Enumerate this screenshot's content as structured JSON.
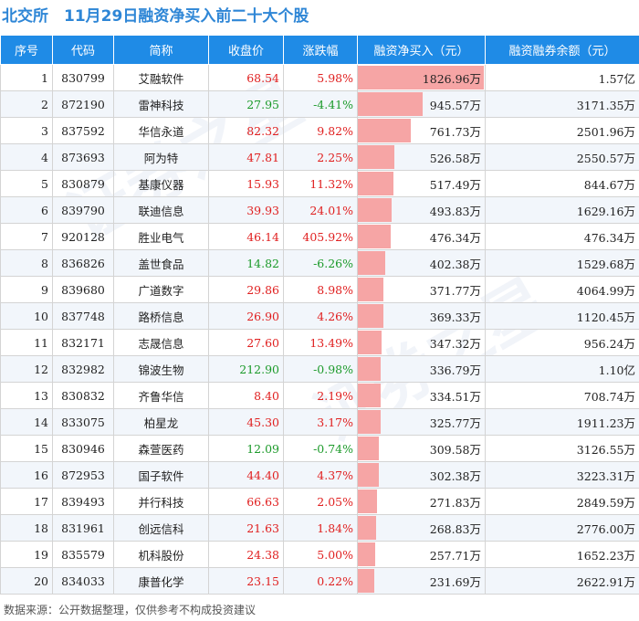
{
  "header": {
    "brand": "北交所",
    "title": "11月29日融资净买入前二十大个股"
  },
  "columns": {
    "rank": "序号",
    "code": "代码",
    "name": "简称",
    "close": "收盘价",
    "change": "涨跌幅",
    "net_buy": "融资净买入（元）",
    "balance": "融资融券余额（元）"
  },
  "colors": {
    "up": "#e02020",
    "down": "#1c9a2a",
    "bar": "#f6a5a5",
    "header_bg": "#1f8be6",
    "brand": "#2e86d6"
  },
  "chart_data": {
    "type": "table",
    "columns": [
      "序号",
      "代码",
      "简称",
      "收盘价",
      "涨跌幅",
      "融资净买入（元）",
      "融资融券余额（元）"
    ],
    "net_buy_unit": "万",
    "rows": [
      {
        "rank": "1",
        "code": "830799",
        "name": "艾融软件",
        "close": "68.54",
        "change": "5.98%",
        "dir": "up",
        "net_buy": 1826.96,
        "net_buy_text": "1826.96万",
        "balance": "1.57亿"
      },
      {
        "rank": "2",
        "code": "872190",
        "name": "雷神科技",
        "close": "27.95",
        "change": "-4.41%",
        "dir": "down",
        "net_buy": 945.57,
        "net_buy_text": "945.57万",
        "balance": "3171.35万"
      },
      {
        "rank": "3",
        "code": "837592",
        "name": "华信永道",
        "close": "82.32",
        "change": "9.82%",
        "dir": "up",
        "net_buy": 761.73,
        "net_buy_text": "761.73万",
        "balance": "2501.96万"
      },
      {
        "rank": "4",
        "code": "873693",
        "name": "阿为特",
        "close": "47.81",
        "change": "2.25%",
        "dir": "up",
        "net_buy": 526.58,
        "net_buy_text": "526.58万",
        "balance": "2550.57万"
      },
      {
        "rank": "5",
        "code": "830879",
        "name": "基康仪器",
        "close": "15.93",
        "change": "11.32%",
        "dir": "up",
        "net_buy": 517.49,
        "net_buy_text": "517.49万",
        "balance": "844.67万"
      },
      {
        "rank": "6",
        "code": "839790",
        "name": "联迪信息",
        "close": "39.93",
        "change": "24.01%",
        "dir": "up",
        "net_buy": 493.83,
        "net_buy_text": "493.83万",
        "balance": "1629.16万"
      },
      {
        "rank": "7",
        "code": "920128",
        "name": "胜业电气",
        "close": "46.14",
        "change": "405.92%",
        "dir": "up",
        "net_buy": 476.34,
        "net_buy_text": "476.34万",
        "balance": "476.34万"
      },
      {
        "rank": "8",
        "code": "836826",
        "name": "盖世食品",
        "close": "14.82",
        "change": "-6.26%",
        "dir": "down",
        "net_buy": 402.38,
        "net_buy_text": "402.38万",
        "balance": "1529.68万"
      },
      {
        "rank": "9",
        "code": "839680",
        "name": "广道数字",
        "close": "29.86",
        "change": "8.98%",
        "dir": "up",
        "net_buy": 371.77,
        "net_buy_text": "371.77万",
        "balance": "4064.99万"
      },
      {
        "rank": "10",
        "code": "837748",
        "name": "路桥信息",
        "close": "26.90",
        "change": "4.26%",
        "dir": "up",
        "net_buy": 369.33,
        "net_buy_text": "369.33万",
        "balance": "1120.45万"
      },
      {
        "rank": "11",
        "code": "832171",
        "name": "志晟信息",
        "close": "27.60",
        "change": "13.49%",
        "dir": "up",
        "net_buy": 347.32,
        "net_buy_text": "347.32万",
        "balance": "956.24万"
      },
      {
        "rank": "12",
        "code": "832982",
        "name": "锦波生物",
        "close": "212.90",
        "change": "-0.98%",
        "dir": "down",
        "net_buy": 336.79,
        "net_buy_text": "336.79万",
        "balance": "1.10亿"
      },
      {
        "rank": "13",
        "code": "830832",
        "name": "齐鲁华信",
        "close": "8.40",
        "change": "2.19%",
        "dir": "up",
        "net_buy": 334.51,
        "net_buy_text": "334.51万",
        "balance": "708.74万"
      },
      {
        "rank": "14",
        "code": "833075",
        "name": "柏星龙",
        "close": "45.30",
        "change": "3.17%",
        "dir": "up",
        "net_buy": 325.77,
        "net_buy_text": "325.77万",
        "balance": "1911.23万"
      },
      {
        "rank": "15",
        "code": "830946",
        "name": "森萱医药",
        "close": "12.09",
        "change": "-0.74%",
        "dir": "down",
        "net_buy": 309.58,
        "net_buy_text": "309.58万",
        "balance": "3126.55万"
      },
      {
        "rank": "16",
        "code": "872953",
        "name": "国子软件",
        "close": "44.40",
        "change": "4.37%",
        "dir": "up",
        "net_buy": 302.38,
        "net_buy_text": "302.38万",
        "balance": "3223.31万"
      },
      {
        "rank": "17",
        "code": "839493",
        "name": "并行科技",
        "close": "66.63",
        "change": "2.05%",
        "dir": "up",
        "net_buy": 271.83,
        "net_buy_text": "271.83万",
        "balance": "2849.59万"
      },
      {
        "rank": "18",
        "code": "831961",
        "name": "创远信科",
        "close": "21.63",
        "change": "1.84%",
        "dir": "up",
        "net_buy": 268.83,
        "net_buy_text": "268.83万",
        "balance": "2776.00万"
      },
      {
        "rank": "19",
        "code": "835579",
        "name": "机科股份",
        "close": "24.38",
        "change": "5.00%",
        "dir": "up",
        "net_buy": 257.71,
        "net_buy_text": "257.71万",
        "balance": "1652.23万"
      },
      {
        "rank": "20",
        "code": "834033",
        "name": "康普化学",
        "close": "23.15",
        "change": "0.22%",
        "dir": "up",
        "net_buy": 231.69,
        "net_buy_text": "231.69万",
        "balance": "2622.91万"
      }
    ]
  },
  "footer": {
    "source": "数据来源：公开数据整理，仅供参考不构成投资建议"
  }
}
